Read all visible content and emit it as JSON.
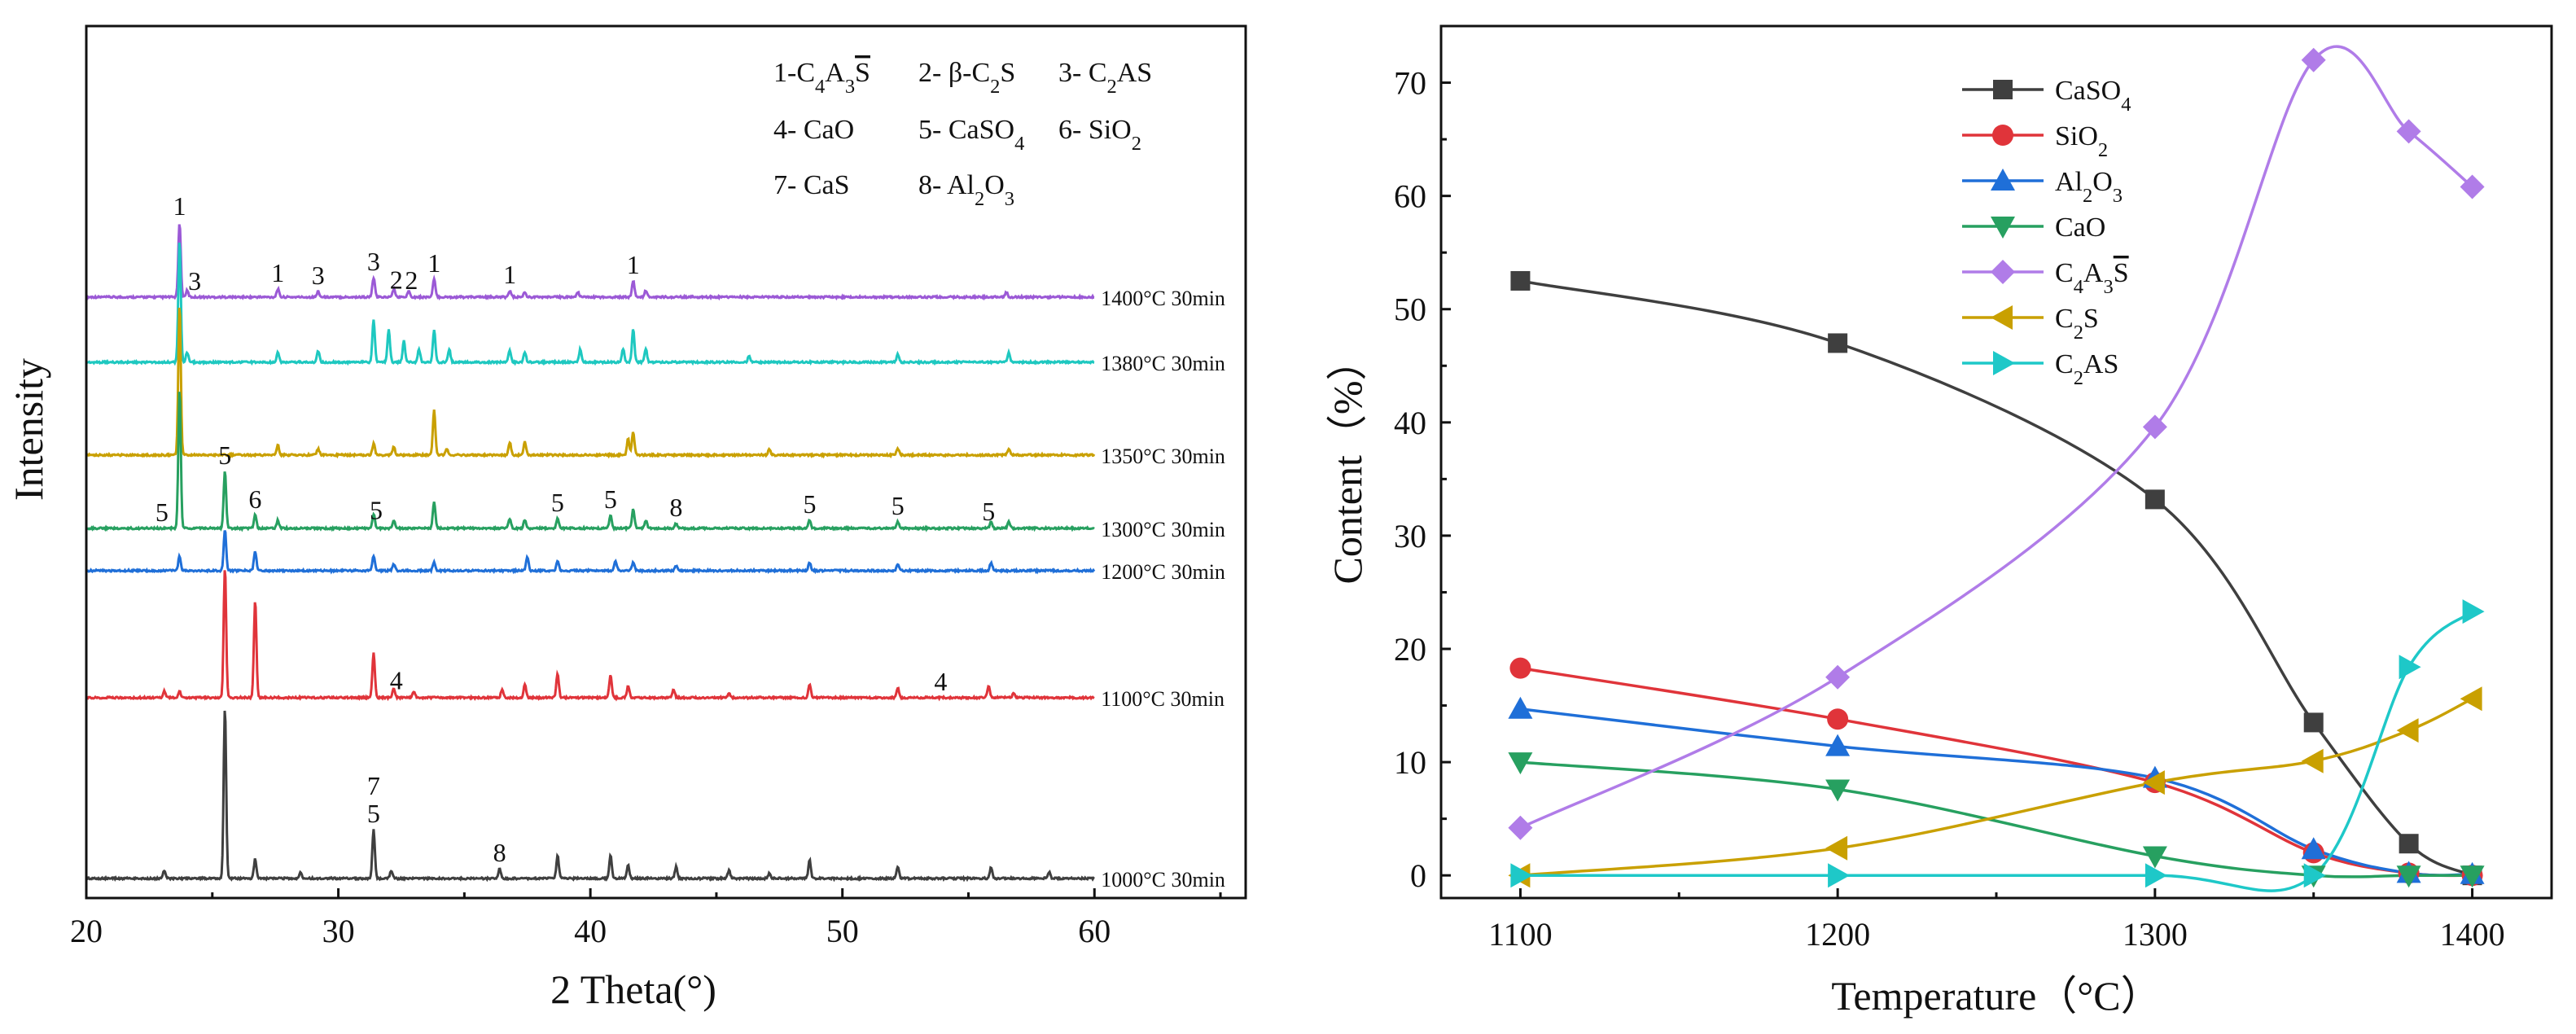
{
  "chart_data": [
    {
      "type": "line",
      "xlabel": "2 Theta(°)",
      "ylabel": "Intensity",
      "xlim": [
        20,
        66
      ],
      "xticks": [
        20,
        30,
        40,
        50,
        60
      ],
      "legend_position": "top-right",
      "phase_key": [
        {
          "num": "1-",
          "main": "C",
          "sub": "4",
          "main2": "A",
          "sub2": "3",
          "sbar": "S"
        },
        {
          "num": "2- ",
          "main": "β-C",
          "sub": "2",
          "main2": "S"
        },
        {
          "num": "3- ",
          "main": "C",
          "sub": "2",
          "main2": "AS"
        },
        {
          "num": "4- ",
          "main": "CaO"
        },
        {
          "num": "5- ",
          "main": "CaSO",
          "sub": "4"
        },
        {
          "num": "6- ",
          "main": "SiO",
          "sub": "2"
        },
        {
          "num": "7- ",
          "main": "CaS"
        },
        {
          "num": "8- ",
          "main": "Al",
          "sub": "2",
          "main2": "O",
          "sub2": "3"
        }
      ],
      "series": [
        {
          "name": "1400°C 30min",
          "color": "#9B59D6",
          "peaks": [
            [
              23.7,
              92
            ],
            [
              24.0,
              8
            ],
            [
              27.6,
              10
            ],
            [
              29.2,
              7
            ],
            [
              31.4,
              24
            ],
            [
              32.2,
              10
            ],
            [
              32.8,
              8
            ],
            [
              33.8,
              22
            ],
            [
              36.8,
              8
            ],
            [
              37.4,
              6
            ],
            [
              39.5,
              6
            ],
            [
              41.7,
              20
            ],
            [
              42.2,
              8
            ],
            [
              56.5,
              6
            ]
          ]
        },
        {
          "name": "1380°C 30min",
          "color": "#1EC8C0",
          "peaks": [
            [
              23.7,
              150
            ],
            [
              24.0,
              12
            ],
            [
              27.6,
              12
            ],
            [
              29.2,
              14
            ],
            [
              31.4,
              52
            ],
            [
              32.0,
              40
            ],
            [
              32.6,
              26
            ],
            [
              33.2,
              16
            ],
            [
              33.8,
              40
            ],
            [
              34.4,
              16
            ],
            [
              36.8,
              14
            ],
            [
              37.4,
              12
            ],
            [
              39.6,
              16
            ],
            [
              41.3,
              16
            ],
            [
              41.7,
              40
            ],
            [
              42.2,
              16
            ],
            [
              46.3,
              8
            ],
            [
              52.2,
              10
            ],
            [
              56.6,
              12
            ]
          ]
        },
        {
          "name": "1350°C 30min",
          "color": "#C9A000",
          "peaks": [
            [
              23.7,
              185
            ],
            [
              27.6,
              12
            ],
            [
              29.2,
              8
            ],
            [
              31.4,
              14
            ],
            [
              32.2,
              10
            ],
            [
              33.8,
              55
            ],
            [
              34.3,
              8
            ],
            [
              36.8,
              16
            ],
            [
              37.4,
              16
            ],
            [
              41.5,
              20
            ],
            [
              41.7,
              28
            ],
            [
              47.1,
              8
            ],
            [
              52.2,
              8
            ],
            [
              56.6,
              8
            ]
          ]
        },
        {
          "name": "1300°C 30min",
          "color": "#27A060",
          "peaks": [
            [
              23.7,
              170
            ],
            [
              25.5,
              70
            ],
            [
              26.7,
              16
            ],
            [
              27.6,
              10
            ],
            [
              31.4,
              18
            ],
            [
              32.2,
              10
            ],
            [
              33.8,
              32
            ],
            [
              36.8,
              12
            ],
            [
              37.4,
              10
            ],
            [
              38.7,
              12
            ],
            [
              40.8,
              16
            ],
            [
              41.7,
              24
            ],
            [
              42.2,
              10
            ],
            [
              43.4,
              6
            ],
            [
              48.7,
              10
            ],
            [
              52.2,
              8
            ],
            [
              55.9,
              8
            ],
            [
              56.6,
              8
            ]
          ]
        },
        {
          "name": "1200°C 30min",
          "color": "#1F6FD8",
          "peaks": [
            [
              23.7,
              18
            ],
            [
              25.5,
              50
            ],
            [
              26.7,
              24
            ],
            [
              31.4,
              18
            ],
            [
              32.2,
              8
            ],
            [
              33.8,
              10
            ],
            [
              37.5,
              16
            ],
            [
              38.7,
              12
            ],
            [
              41.0,
              12
            ],
            [
              41.7,
              10
            ],
            [
              43.4,
              6
            ],
            [
              48.7,
              10
            ],
            [
              52.2,
              8
            ],
            [
              55.9,
              10
            ]
          ]
        },
        {
          "name": "1100°C 30min",
          "color": "#E0343A",
          "peaks": [
            [
              23.1,
              8
            ],
            [
              23.7,
              8
            ],
            [
              25.5,
              160
            ],
            [
              26.7,
              120
            ],
            [
              31.4,
              55
            ],
            [
              32.2,
              12
            ],
            [
              33.0,
              8
            ],
            [
              36.5,
              10
            ],
            [
              37.4,
              16
            ],
            [
              38.7,
              30
            ],
            [
              40.8,
              28
            ],
            [
              41.5,
              14
            ],
            [
              43.3,
              10
            ],
            [
              45.5,
              6
            ],
            [
              48.7,
              16
            ],
            [
              52.2,
              12
            ],
            [
              55.8,
              14
            ],
            [
              56.8,
              6
            ]
          ]
        },
        {
          "name": "1000°C 30min",
          "color": "#3F3F3F",
          "peaks": [
            [
              23.1,
              10
            ],
            [
              25.5,
              210
            ],
            [
              26.7,
              24
            ],
            [
              28.5,
              8
            ],
            [
              31.4,
              60
            ],
            [
              32.1,
              10
            ],
            [
              36.4,
              12
            ],
            [
              38.7,
              28
            ],
            [
              40.8,
              28
            ],
            [
              41.5,
              16
            ],
            [
              43.4,
              14
            ],
            [
              45.5,
              10
            ],
            [
              47.1,
              6
            ],
            [
              48.7,
              22
            ],
            [
              52.2,
              14
            ],
            [
              55.9,
              14
            ],
            [
              58.2,
              8
            ]
          ]
        }
      ],
      "peak_labels": [
        {
          "text": "1",
          "x": 23.7,
          "trace": "1400°C 30min"
        },
        {
          "text": "3",
          "x": 24.3,
          "trace": "1400°C 30min"
        },
        {
          "text": "1",
          "x": 27.6,
          "trace": "1400°C 30min"
        },
        {
          "text": "3",
          "x": 29.2,
          "trace": "1400°C 30min"
        },
        {
          "text": "3",
          "x": 31.4,
          "trace": "1400°C 30min"
        },
        {
          "text": "2",
          "x": 32.3,
          "trace": "1400°C 30min"
        },
        {
          "text": "2",
          "x": 32.9,
          "trace": "1400°C 30min"
        },
        {
          "text": "1",
          "x": 33.8,
          "trace": "1400°C 30min"
        },
        {
          "text": "1",
          "x": 36.8,
          "trace": "1400°C 30min"
        },
        {
          "text": "1",
          "x": 41.7,
          "trace": "1400°C 30min"
        },
        {
          "text": "5",
          "x": 23.0,
          "trace": "1300°C 30min"
        },
        {
          "text": "5",
          "x": 25.5,
          "trace": "1300°C 30min"
        },
        {
          "text": "6",
          "x": 26.7,
          "trace": "1300°C 30min"
        },
        {
          "text": "5",
          "x": 31.5,
          "trace": "1300°C 30min"
        },
        {
          "text": "5",
          "x": 38.7,
          "trace": "1300°C 30min"
        },
        {
          "text": "5",
          "x": 40.8,
          "trace": "1300°C 30min"
        },
        {
          "text": "8",
          "x": 43.4,
          "trace": "1300°C 30min"
        },
        {
          "text": "5",
          "x": 48.7,
          "trace": "1300°C 30min"
        },
        {
          "text": "5",
          "x": 52.2,
          "trace": "1300°C 30min"
        },
        {
          "text": "5",
          "x": 55.8,
          "trace": "1300°C 30min"
        },
        {
          "text": "4",
          "x": 32.3,
          "trace": "1100°C 30min"
        },
        {
          "text": "4",
          "x": 53.9,
          "trace": "1100°C 30min"
        },
        {
          "text": "7",
          "x": 31.4,
          "trace": "1000°C 30min"
        },
        {
          "text": "5",
          "x": 31.4,
          "trace": "1000°C 30min"
        },
        {
          "text": "8",
          "x": 36.4,
          "trace": "1000°C 30min"
        }
      ]
    },
    {
      "type": "line",
      "xlabel": "Temperature（°C）",
      "ylabel": "Content（%）",
      "xlim": [
        1075,
        1425
      ],
      "ylim": [
        -2,
        75
      ],
      "xticks": [
        1100,
        1200,
        1300,
        1400
      ],
      "yticks": [
        0,
        10,
        20,
        30,
        40,
        50,
        60,
        70
      ],
      "legend_position": "top-left",
      "x": [
        1100,
        1200,
        1300,
        1350,
        1380,
        1400
      ],
      "series": [
        {
          "name": "CaSO4",
          "label": {
            "main": "CaSO",
            "sub": "4"
          },
          "color": "#3F3F3F",
          "marker": "square",
          "values": [
            52.5,
            47.0,
            33.2,
            13.5,
            2.8,
            0
          ]
        },
        {
          "name": "SiO2",
          "label": {
            "main": "SiO",
            "sub": "2"
          },
          "color": "#E0343A",
          "marker": "circle",
          "values": [
            18.3,
            13.8,
            8.2,
            2.0,
            0.2,
            0
          ]
        },
        {
          "name": "Al2O3",
          "label": {
            "main": "Al",
            "sub": "2",
            "main2": "O",
            "sub2": "3"
          },
          "color": "#1F6FD8",
          "marker": "triangle-up",
          "values": [
            14.7,
            11.4,
            8.6,
            2.3,
            0.2,
            0.1
          ]
        },
        {
          "name": "CaO",
          "label": {
            "main": "CaO"
          },
          "color": "#27A060",
          "marker": "triangle-down",
          "values": [
            10.0,
            7.6,
            1.7,
            0,
            0,
            0
          ]
        },
        {
          "name": "C4A3S",
          "label": {
            "main": "C",
            "sub": "4",
            "main2": "A",
            "sub2": "3",
            "sbar": "S"
          },
          "color": "#B07CE8",
          "marker": "diamond",
          "values": [
            4.2,
            17.5,
            39.6,
            72.0,
            65.7,
            60.8
          ]
        },
        {
          "name": "C2S",
          "label": {
            "main": "C",
            "sub": "2",
            "main2": "S"
          },
          "color": "#C9A000",
          "marker": "triangle-left",
          "values": [
            0,
            2.4,
            8.2,
            10.1,
            12.8,
            15.6
          ]
        },
        {
          "name": "C2AS",
          "label": {
            "main": "C",
            "sub": "2",
            "main2": "AS"
          },
          "color": "#1EC8C8",
          "marker": "triangle-right",
          "values": [
            0,
            0,
            0,
            0,
            18.4,
            23.3
          ]
        }
      ]
    }
  ]
}
